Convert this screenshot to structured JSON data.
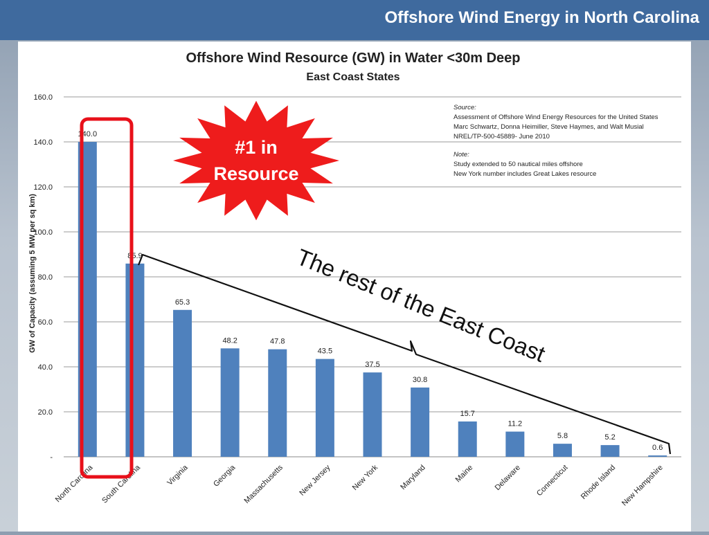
{
  "slide": {
    "title": "Offshore Wind Energy in North Carolina"
  },
  "colors": {
    "header_bg": "#3f6a9e",
    "bar": "#4f81bd",
    "highlight": "#e8101a",
    "burst": "#ee1c1c"
  },
  "chart_data": {
    "type": "bar",
    "title": "Offshore Wind Resource (GW) in Water <30m Deep",
    "subtitle": "East Coast States",
    "xlabel": "",
    "ylabel": "GW of Capacity  (assuming 5 MW per sq km)",
    "ylim": [
      0,
      160
    ],
    "yticks": [
      "-",
      "20.0",
      "40.0",
      "60.0",
      "80.0",
      "100.0",
      "120.0",
      "140.0",
      "160.0"
    ],
    "grid": true,
    "categories": [
      "North Carolina",
      "South Carolina",
      "Virginia",
      "Georgia",
      "Massachusetts",
      "New Jersey",
      "New York",
      "Maryland",
      "Maine",
      "Delaware",
      "Connecticut",
      "Rhode Island",
      "New Hampshire"
    ],
    "values": [
      140.0,
      85.9,
      65.3,
      48.2,
      47.8,
      43.5,
      37.5,
      30.8,
      15.7,
      11.2,
      5.8,
      5.2,
      0.6
    ],
    "value_labels": [
      "140.0",
      "85.9",
      "65.3",
      "48.2",
      "47.8",
      "43.5",
      "37.5",
      "30.8",
      "15.7",
      "11.2",
      "5.8",
      "5.2",
      "0.6"
    ],
    "source_note": {
      "source_label": "Source:",
      "source_lines": [
        "Assessment of Offshore Wind Energy Resources for the United States",
        "Marc Schwartz, Donna Heimiller, Steve Haymes, and Walt Musial",
        "NREL/TP-500-45889- June 2010"
      ],
      "note_label": "Note:",
      "note_lines": [
        "Study extended to 50 nautical miles offshore",
        "New York number includes Great Lakes resource"
      ]
    },
    "annotations": {
      "burst_line1": "#1 in",
      "burst_line2": "Resource",
      "rest_label": "The rest of the East Coast"
    }
  }
}
